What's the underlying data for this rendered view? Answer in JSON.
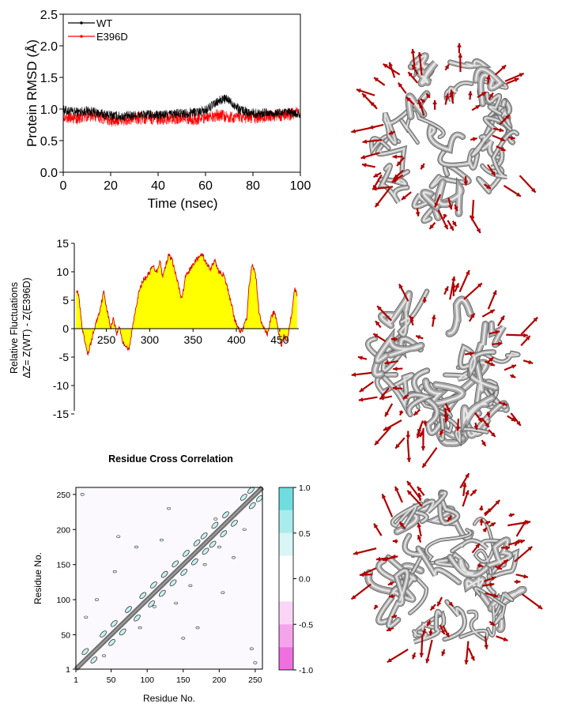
{
  "chart_data": [
    {
      "type": "line",
      "xlabel": "Time (nsec)",
      "ylabel": "Protein RMSD (Å)",
      "xlim": [
        0,
        100
      ],
      "ylim": [
        0,
        2.5
      ],
      "xticks": [
        "0",
        "20",
        "40",
        "60",
        "80",
        "100"
      ],
      "yticks": [
        "0.0",
        "0.5",
        "1.0",
        "1.5",
        "2.0",
        "2.5"
      ],
      "legend_placement": "top-left",
      "legend_labels": [
        "WT",
        "E396D"
      ],
      "series": [
        {
          "name": "WT",
          "color": "#000000",
          "x": [
            0,
            5,
            10,
            15,
            20,
            25,
            30,
            35,
            40,
            45,
            50,
            55,
            60,
            62,
            64,
            66,
            68,
            70,
            72,
            74,
            76,
            78,
            80,
            85,
            90,
            95,
            100
          ],
          "y": [
            0.98,
            0.95,
            0.97,
            0.93,
            0.9,
            0.88,
            0.9,
            0.91,
            0.9,
            0.92,
            0.93,
            0.95,
            0.98,
            1.03,
            1.08,
            1.13,
            1.16,
            1.13,
            1.07,
            1.0,
            0.97,
            0.95,
            0.93,
            0.94,
            0.93,
            0.94,
            0.92
          ],
          "noise": 0.08
        },
        {
          "name": "E396D",
          "color": "#ff0000",
          "x": [
            0,
            5,
            10,
            15,
            20,
            25,
            30,
            35,
            40,
            45,
            50,
            55,
            60,
            65,
            70,
            75,
            80,
            85,
            90,
            95,
            100
          ],
          "y": [
            0.9,
            0.84,
            0.9,
            0.88,
            0.82,
            0.83,
            0.85,
            0.86,
            0.85,
            0.84,
            0.87,
            0.84,
            0.86,
            0.9,
            0.88,
            0.86,
            0.87,
            0.88,
            0.9,
            0.91,
            0.95
          ],
          "noise": 0.1
        }
      ]
    },
    {
      "type": "area",
      "ylabel_line1": "Relative Fluctuations",
      "ylabel_line2": "ΔZ= Z(WT) - Z(E396D)",
      "xlim": [
        213,
        472
      ],
      "ylim": [
        -15,
        15
      ],
      "xticks": [
        "250",
        "300",
        "350",
        "400",
        "450"
      ],
      "yticks": [
        "15",
        "10",
        "5",
        "0",
        "-5",
        "-10",
        "-15"
      ],
      "fill_color": "#ffff00",
      "line_color": "#dd0000",
      "x": [
        215,
        218,
        222,
        226,
        229,
        233,
        238,
        242,
        247,
        250,
        255,
        258,
        262,
        265,
        269,
        273,
        276,
        279,
        283,
        287,
        292,
        296,
        300,
        304,
        308,
        312,
        315,
        318,
        322,
        326,
        330,
        334,
        337,
        341,
        345,
        349,
        353,
        357,
        361,
        365,
        370,
        375,
        380,
        385,
        390,
        395,
        398,
        402,
        405,
        408,
        412,
        415,
        418,
        422,
        426,
        429,
        432,
        436,
        440,
        444,
        448,
        452,
        455,
        458,
        461,
        464,
        467,
        470
      ],
      "y": [
        7,
        6,
        0,
        -3,
        -4.5,
        -2,
        1,
        3,
        6.5,
        4,
        0,
        2,
        -1,
        0.5,
        -2.5,
        -3,
        -4,
        -1,
        3,
        6,
        8.5,
        9,
        10,
        11,
        10,
        12,
        9,
        11,
        13,
        12,
        9.5,
        7,
        5,
        9,
        10,
        11,
        12,
        12.5,
        13,
        11.5,
        10.5,
        12,
        10,
        9.5,
        7,
        4,
        1.5,
        0.3,
        -0.5,
        0,
        2,
        8,
        11,
        10,
        3,
        1,
        0,
        -1,
        2,
        3,
        0,
        -3,
        -1,
        -2,
        0,
        3,
        7,
        6
      ]
    },
    {
      "type": "heatmap",
      "title": "Residue Cross Correlation",
      "xlabel": "Residue No.",
      "ylabel": "Residue No.",
      "xlim": [
        1,
        260
      ],
      "ylim": [
        1,
        260
      ],
      "xticks": [
        "1",
        "50",
        "100",
        "150",
        "200",
        "250"
      ],
      "yticks": [
        "1",
        "50",
        "100",
        "150",
        "200",
        "250"
      ],
      "colorbar_ticks": [
        "1.0",
        "0.5",
        "0.0",
        "-0.5",
        "-1.0"
      ],
      "colorbar_levels": [
        {
          "from": 0.75,
          "to": 1.0,
          "color": "#6fdde0"
        },
        {
          "from": 0.5,
          "to": 0.75,
          "color": "#a9ecec"
        },
        {
          "from": 0.25,
          "to": 0.5,
          "color": "#d9f5f5"
        },
        {
          "from": -0.25,
          "to": 0.25,
          "color": "#ffffff"
        },
        {
          "from": -0.5,
          "to": -0.25,
          "color": "#fad6f6"
        },
        {
          "from": -0.75,
          "to": -0.5,
          "color": "#f5a3ec"
        },
        {
          "from": -1.0,
          "to": -0.75,
          "color": "#ee70e0"
        }
      ],
      "background_color": "#fbf9fd",
      "diagonal_color": "#6e6e6e",
      "near_diagonal_features": [
        20,
        45,
        60,
        80,
        100,
        115,
        130,
        145,
        160,
        175,
        185,
        200,
        215,
        240,
        250
      ],
      "scattered_contours": [
        [
          40,
          20
        ],
        [
          15,
          75
        ],
        [
          90,
          60
        ],
        [
          110,
          90
        ],
        [
          140,
          95
        ],
        [
          160,
          120
        ],
        [
          180,
          150
        ],
        [
          200,
          175
        ],
        [
          220,
          160
        ],
        [
          235,
          200
        ],
        [
          60,
          190
        ],
        [
          130,
          230
        ],
        [
          30,
          100
        ],
        [
          205,
          110
        ],
        [
          170,
          60
        ],
        [
          250,
          10
        ],
        [
          10,
          250
        ],
        [
          245,
          30
        ],
        [
          85,
          175
        ],
        [
          120,
          185
        ],
        [
          55,
          140
        ],
        [
          195,
          215
        ],
        [
          150,
          45
        ]
      ]
    }
  ],
  "images": [
    {
      "name": "protein-ribbon-structure-top",
      "ribbon_color": "#a8a8a8",
      "arrow_color": "#b00000"
    },
    {
      "name": "protein-ribbon-structure-middle",
      "ribbon_color": "#a8a8a8",
      "arrow_color": "#b00000"
    },
    {
      "name": "protein-ribbon-structure-bottom",
      "ribbon_color": "#a8a8a8",
      "arrow_color": "#b00000"
    }
  ]
}
